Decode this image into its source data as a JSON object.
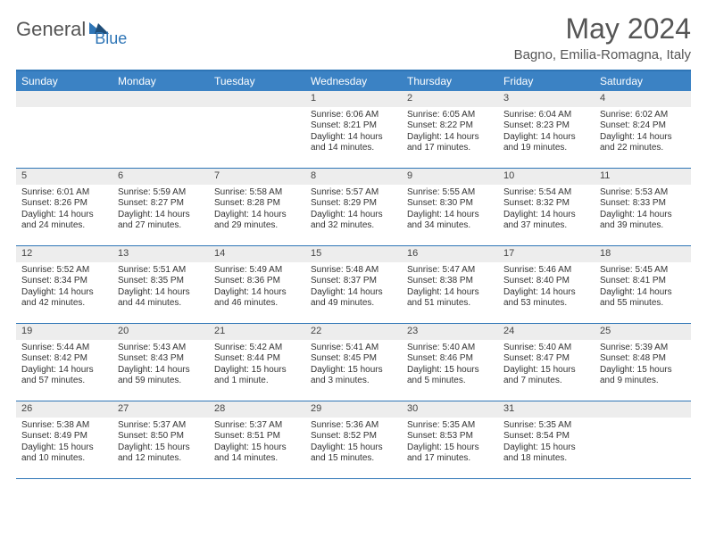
{
  "logo": {
    "text_a": "General",
    "text_b": "Blue"
  },
  "title": "May 2024",
  "location": "Bagno, Emilia-Romagna, Italy",
  "colors": {
    "header_bar": "#3b82c4",
    "header_border": "#2e75b6",
    "daynum_bg": "#ededed",
    "text": "#333333",
    "muted": "#555555",
    "white": "#ffffff"
  },
  "fonts": {
    "title_size": 32,
    "location_size": 15,
    "dayhead_size": 12,
    "daynum_size": 11,
    "body_size": 10
  },
  "day_names": [
    "Sunday",
    "Monday",
    "Tuesday",
    "Wednesday",
    "Thursday",
    "Friday",
    "Saturday"
  ],
  "weeks": [
    [
      null,
      null,
      null,
      {
        "n": "1",
        "sunrise": "6:06 AM",
        "sunset": "8:21 PM",
        "daylight": "14 hours and 14 minutes."
      },
      {
        "n": "2",
        "sunrise": "6:05 AM",
        "sunset": "8:22 PM",
        "daylight": "14 hours and 17 minutes."
      },
      {
        "n": "3",
        "sunrise": "6:04 AM",
        "sunset": "8:23 PM",
        "daylight": "14 hours and 19 minutes."
      },
      {
        "n": "4",
        "sunrise": "6:02 AM",
        "sunset": "8:24 PM",
        "daylight": "14 hours and 22 minutes."
      }
    ],
    [
      {
        "n": "5",
        "sunrise": "6:01 AM",
        "sunset": "8:26 PM",
        "daylight": "14 hours and 24 minutes."
      },
      {
        "n": "6",
        "sunrise": "5:59 AM",
        "sunset": "8:27 PM",
        "daylight": "14 hours and 27 minutes."
      },
      {
        "n": "7",
        "sunrise": "5:58 AM",
        "sunset": "8:28 PM",
        "daylight": "14 hours and 29 minutes."
      },
      {
        "n": "8",
        "sunrise": "5:57 AM",
        "sunset": "8:29 PM",
        "daylight": "14 hours and 32 minutes."
      },
      {
        "n": "9",
        "sunrise": "5:55 AM",
        "sunset": "8:30 PM",
        "daylight": "14 hours and 34 minutes."
      },
      {
        "n": "10",
        "sunrise": "5:54 AM",
        "sunset": "8:32 PM",
        "daylight": "14 hours and 37 minutes."
      },
      {
        "n": "11",
        "sunrise": "5:53 AM",
        "sunset": "8:33 PM",
        "daylight": "14 hours and 39 minutes."
      }
    ],
    [
      {
        "n": "12",
        "sunrise": "5:52 AM",
        "sunset": "8:34 PM",
        "daylight": "14 hours and 42 minutes."
      },
      {
        "n": "13",
        "sunrise": "5:51 AM",
        "sunset": "8:35 PM",
        "daylight": "14 hours and 44 minutes."
      },
      {
        "n": "14",
        "sunrise": "5:49 AM",
        "sunset": "8:36 PM",
        "daylight": "14 hours and 46 minutes."
      },
      {
        "n": "15",
        "sunrise": "5:48 AM",
        "sunset": "8:37 PM",
        "daylight": "14 hours and 49 minutes."
      },
      {
        "n": "16",
        "sunrise": "5:47 AM",
        "sunset": "8:38 PM",
        "daylight": "14 hours and 51 minutes."
      },
      {
        "n": "17",
        "sunrise": "5:46 AM",
        "sunset": "8:40 PM",
        "daylight": "14 hours and 53 minutes."
      },
      {
        "n": "18",
        "sunrise": "5:45 AM",
        "sunset": "8:41 PM",
        "daylight": "14 hours and 55 minutes."
      }
    ],
    [
      {
        "n": "19",
        "sunrise": "5:44 AM",
        "sunset": "8:42 PM",
        "daylight": "14 hours and 57 minutes."
      },
      {
        "n": "20",
        "sunrise": "5:43 AM",
        "sunset": "8:43 PM",
        "daylight": "14 hours and 59 minutes."
      },
      {
        "n": "21",
        "sunrise": "5:42 AM",
        "sunset": "8:44 PM",
        "daylight": "15 hours and 1 minute."
      },
      {
        "n": "22",
        "sunrise": "5:41 AM",
        "sunset": "8:45 PM",
        "daylight": "15 hours and 3 minutes."
      },
      {
        "n": "23",
        "sunrise": "5:40 AM",
        "sunset": "8:46 PM",
        "daylight": "15 hours and 5 minutes."
      },
      {
        "n": "24",
        "sunrise": "5:40 AM",
        "sunset": "8:47 PM",
        "daylight": "15 hours and 7 minutes."
      },
      {
        "n": "25",
        "sunrise": "5:39 AM",
        "sunset": "8:48 PM",
        "daylight": "15 hours and 9 minutes."
      }
    ],
    [
      {
        "n": "26",
        "sunrise": "5:38 AM",
        "sunset": "8:49 PM",
        "daylight": "15 hours and 10 minutes."
      },
      {
        "n": "27",
        "sunrise": "5:37 AM",
        "sunset": "8:50 PM",
        "daylight": "15 hours and 12 minutes."
      },
      {
        "n": "28",
        "sunrise": "5:37 AM",
        "sunset": "8:51 PM",
        "daylight": "15 hours and 14 minutes."
      },
      {
        "n": "29",
        "sunrise": "5:36 AM",
        "sunset": "8:52 PM",
        "daylight": "15 hours and 15 minutes."
      },
      {
        "n": "30",
        "sunrise": "5:35 AM",
        "sunset": "8:53 PM",
        "daylight": "15 hours and 17 minutes."
      },
      {
        "n": "31",
        "sunrise": "5:35 AM",
        "sunset": "8:54 PM",
        "daylight": "15 hours and 18 minutes."
      },
      null
    ]
  ]
}
